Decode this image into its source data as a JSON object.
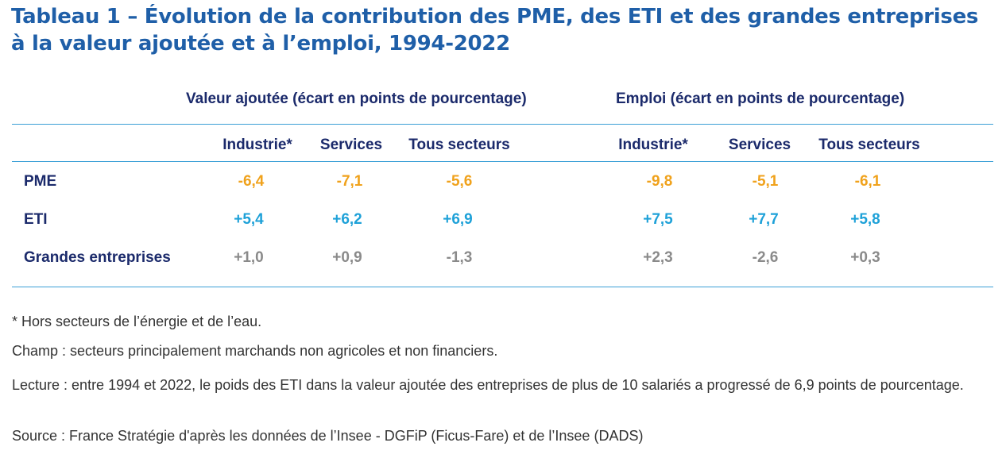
{
  "title_line1": "Tableau 1 – Évolution de la contribution des PME, des ETI et des grandes entreprises",
  "title_line2": "à la valeur ajoutée et à l’emploi, 1994-2022",
  "groups": {
    "va": "Valeur ajoutée (écart en points de pourcentage)",
    "emploi": "Emploi (écart en points de pourcentage)"
  },
  "columns": [
    "Industrie*",
    "Services",
    "Tous secteurs",
    "Industrie*",
    "Services",
    "Tous secteurs"
  ],
  "rows": [
    {
      "label": "PME",
      "color": "#f0a21c",
      "values": [
        "-6,4",
        "-7,1",
        "-5,6",
        "-9,8",
        "-5,1",
        "-6,1"
      ]
    },
    {
      "label": "ETI",
      "color": "#1ea1d8",
      "values": [
        "+5,4",
        "+6,2",
        "+6,9",
        "+7,5",
        "+7,7",
        "+5,8"
      ]
    },
    {
      "label": "Grandes entreprises",
      "color": "#8a8a8a",
      "values": [
        "+1,0",
        "+0,9",
        "-1,3",
        "+2,3",
        "-2,6",
        "+0,3"
      ]
    }
  ],
  "notes": {
    "footnote": "* Hors secteurs de l’énergie et de l’eau.",
    "champ": "Champ : secteurs principalement marchands non agricoles et non financiers.",
    "lecture": "Lecture : entre 1994 et 2022, le poids des ETI dans la valeur ajoutée des entreprises de plus de 10 salariés a progressé de 6,9 points de pourcentage.",
    "source": "Source : France Stratégie d'après les données de l’Insee - DGFiP (Ficus-Fare) et de l’Insee (DADS)"
  }
}
